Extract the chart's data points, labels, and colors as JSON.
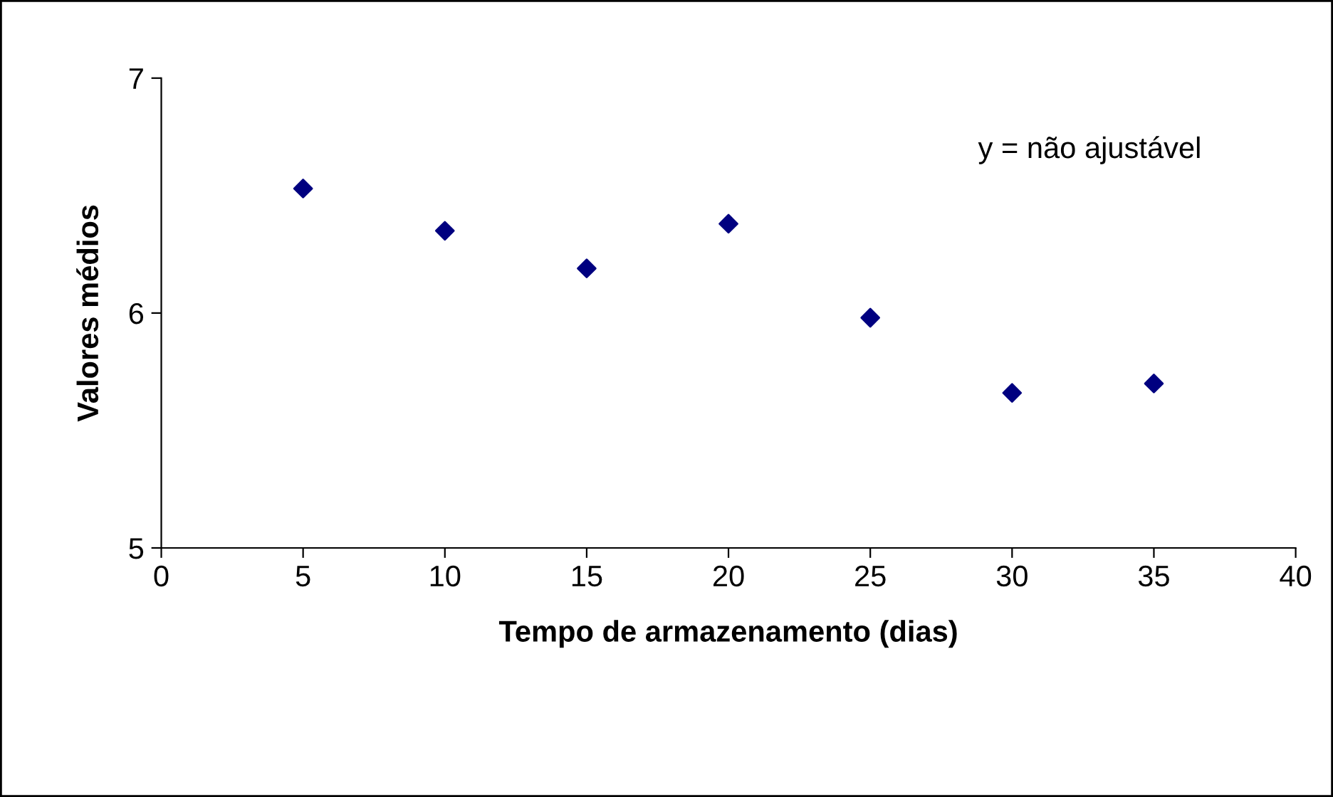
{
  "chart_data": {
    "type": "scatter",
    "xlabel": "Tempo de armazenamento (dias)",
    "ylabel": "Valores médios",
    "annotations": [
      "y = não ajustável"
    ],
    "x": [
      5,
      10,
      15,
      20,
      25,
      30,
      35
    ],
    "series": [
      {
        "color": "#000080",
        "values": [
          6.53,
          6.35,
          6.19,
          6.38,
          5.98,
          5.66,
          5.7
        ]
      }
    ],
    "xlim": [
      0,
      40
    ],
    "xticks": [
      0,
      5,
      10,
      15,
      20,
      25,
      30,
      35,
      40
    ],
    "ylim": [
      5,
      7
    ],
    "yticks": [
      5,
      6,
      7
    ],
    "grid": false,
    "legend": false,
    "marker": "diamond"
  }
}
